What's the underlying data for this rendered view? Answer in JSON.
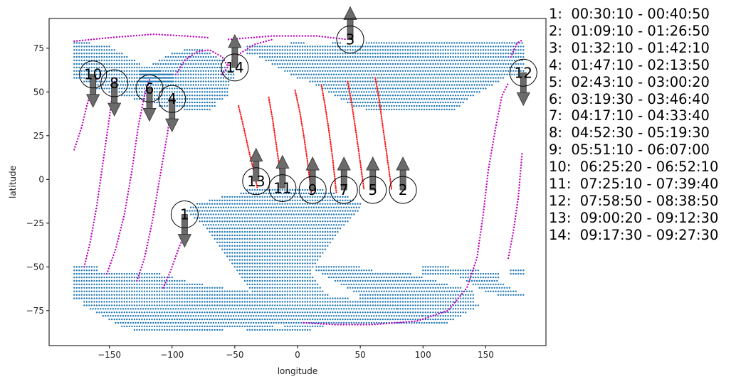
{
  "chart_data": {
    "type": "scatter",
    "title": "",
    "xlabel": "longitude",
    "ylabel": "latitude",
    "xlim": [
      -198,
      198
    ],
    "ylim": [
      -95,
      92
    ],
    "xticks": [
      -150,
      -100,
      -50,
      0,
      50,
      100,
      150
    ],
    "yticks": [
      -75,
      -50,
      -25,
      0,
      25,
      50,
      75
    ],
    "grid": false,
    "colors": {
      "land": "#1f77b4",
      "track": "#bf00bf",
      "segment": "#ff0000",
      "arrow": "#6b6b6b"
    },
    "land_rows": [
      [
        78,
        [
          [
            -178,
            -165
          ],
          [
            -5,
            5
          ],
          [
            28,
            35
          ],
          [
            55,
            180
          ]
        ]
      ],
      [
        76,
        [
          [
            -178,
            -150
          ],
          [
            -40,
            180
          ]
        ]
      ],
      [
        74,
        [
          [
            -178,
            -145
          ],
          [
            -90,
            -75
          ],
          [
            -40,
            180
          ]
        ]
      ],
      [
        72,
        [
          [
            -178,
            -140
          ],
          [
            -100,
            -70
          ],
          [
            -40,
            180
          ]
        ]
      ],
      [
        70,
        [
          [
            -178,
            -135
          ],
          [
            -105,
            -65
          ],
          [
            -30,
            180
          ]
        ]
      ],
      [
        68,
        [
          [
            -178,
            -130
          ],
          [
            -110,
            -60
          ],
          [
            -25,
            180
          ]
        ]
      ],
      [
        66,
        [
          [
            -178,
            -125
          ],
          [
            -115,
            -60
          ],
          [
            -20,
            180
          ]
        ]
      ],
      [
        64,
        [
          [
            -178,
            -120
          ],
          [
            -120,
            -55
          ],
          [
            -15,
            180
          ]
        ]
      ],
      [
        62,
        [
          [
            -178,
            -110
          ],
          [
            -125,
            -50
          ],
          [
            -10,
            180
          ]
        ]
      ],
      [
        60,
        [
          [
            -178,
            -100
          ],
          [
            -125,
            -50
          ],
          [
            -5,
            175
          ]
        ]
      ],
      [
        58,
        [
          [
            -178,
            -100
          ],
          [
            -125,
            -50
          ],
          [
            0,
            165
          ]
        ]
      ],
      [
        56,
        [
          [
            -170,
            -100
          ],
          [
            -125,
            -55
          ],
          [
            10,
            160
          ]
        ]
      ],
      [
        54,
        [
          [
            -165,
            -55
          ],
          [
            15,
            155
          ]
        ]
      ],
      [
        52,
        [
          [
            -160,
            -55
          ],
          [
            20,
            150
          ]
        ]
      ],
      [
        50,
        [
          [
            -150,
            -55
          ],
          [
            25,
            145
          ]
        ]
      ],
      [
        48,
        [
          [
            -140,
            -55
          ],
          [
            30,
            140
          ]
        ]
      ],
      [
        46,
        [
          [
            -130,
            -60
          ],
          [
            35,
            135
          ]
        ]
      ],
      [
        44,
        [
          [
            -120,
            -65
          ],
          [
            40,
            132
          ]
        ]
      ],
      [
        42,
        [
          [
            -110,
            -65
          ],
          [
            45,
            130
          ]
        ]
      ],
      [
        40,
        [
          [
            -90,
            -70
          ],
          [
            55,
            125
          ]
        ]
      ],
      [
        -6,
        [
          [
            -40,
            20
          ]
        ]
      ],
      [
        -8,
        [
          [
            -45,
            30
          ]
        ]
      ],
      [
        -10,
        [
          [
            -60,
            40
          ]
        ]
      ],
      [
        -12,
        [
          [
            -70,
            45
          ]
        ]
      ],
      [
        -14,
        [
          [
            -80,
            50
          ]
        ]
      ],
      [
        -16,
        [
          [
            -85,
            50
          ]
        ]
      ],
      [
        -18,
        [
          [
            -88,
            48
          ]
        ]
      ],
      [
        -20,
        [
          [
            -85,
            45
          ]
        ]
      ],
      [
        -22,
        [
          [
            -82,
            42
          ]
        ]
      ],
      [
        -24,
        [
          [
            -78,
            40
          ]
        ]
      ],
      [
        -26,
        [
          [
            -75,
            38
          ]
        ]
      ],
      [
        -28,
        [
          [
            -72,
            35
          ]
        ]
      ],
      [
        -30,
        [
          [
            -70,
            32
          ]
        ]
      ],
      [
        -32,
        [
          [
            -68,
            30
          ]
        ]
      ],
      [
        -34,
        [
          [
            -66,
            28
          ]
        ]
      ],
      [
        -36,
        [
          [
            -64,
            26
          ]
        ]
      ],
      [
        -38,
        [
          [
            -62,
            24
          ]
        ]
      ],
      [
        -40,
        [
          [
            -60,
            22
          ]
        ]
      ],
      [
        -42,
        [
          [
            -58,
            20
          ]
        ]
      ],
      [
        -44,
        [
          [
            -56,
            18
          ]
        ]
      ],
      [
        -46,
        [
          [
            -54,
            16
          ]
        ]
      ],
      [
        -48,
        [
          [
            -52,
            14
          ]
        ]
      ],
      [
        -50,
        [
          [
            -178,
            -160
          ],
          [
            -50,
            12
          ],
          [
            15,
            50
          ],
          [
            100,
            120
          ]
        ]
      ],
      [
        -52,
        [
          [
            -178,
            -160
          ],
          [
            -48,
            10
          ],
          [
            15,
            60
          ],
          [
            100,
            145
          ],
          [
            170,
            180
          ]
        ]
      ],
      [
        -54,
        [
          [
            -178,
            -110
          ],
          [
            -46,
            10
          ],
          [
            20,
            90
          ],
          [
            100,
            160
          ],
          [
            170,
            180
          ]
        ]
      ],
      [
        -56,
        [
          [
            -178,
            -100
          ],
          [
            -44,
            12
          ],
          [
            25,
            100
          ],
          [
            130,
            160
          ]
        ]
      ],
      [
        -58,
        [
          [
            -178,
            -90
          ],
          [
            -42,
            14
          ],
          [
            30,
            110
          ],
          [
            135,
            160
          ]
        ]
      ],
      [
        -60,
        [
          [
            -178,
            -75
          ],
          [
            -40,
            16
          ],
          [
            35,
            120
          ],
          [
            140,
            165
          ]
        ]
      ],
      [
        -62,
        [
          [
            -178,
            -60
          ],
          [
            -38,
            18
          ],
          [
            40,
            130
          ],
          [
            145,
            170
          ]
        ]
      ],
      [
        -64,
        [
          [
            -178,
            -40
          ],
          [
            -36,
            20
          ],
          [
            45,
            140
          ],
          [
            150,
            175
          ]
        ]
      ],
      [
        -66,
        [
          [
            -178,
            -10
          ],
          [
            -30,
            25
          ],
          [
            50,
            140
          ],
          [
            160,
            180
          ]
        ]
      ],
      [
        -68,
        [
          [
            -178,
            40
          ],
          [
            50,
            140
          ]
        ]
      ],
      [
        -70,
        [
          [
            -170,
            60
          ],
          [
            60,
            140
          ]
        ]
      ],
      [
        -72,
        [
          [
            -170,
            70
          ],
          [
            70,
            145
          ]
        ]
      ],
      [
        -74,
        [
          [
            -165,
            80
          ],
          [
            80,
            140
          ]
        ]
      ],
      [
        -76,
        [
          [
            -160,
            90
          ],
          [
            90,
            135
          ]
        ]
      ],
      [
        -78,
        [
          [
            -155,
            100
          ],
          [
            100,
            130
          ]
        ]
      ],
      [
        -80,
        [
          [
            -150,
            110
          ],
          [
            110,
            125
          ]
        ]
      ],
      [
        -82,
        [
          [
            -145,
            120
          ]
        ]
      ],
      [
        -84,
        [
          [
            -140,
            -20
          ],
          [
            -10,
            20
          ]
        ]
      ],
      [
        -86,
        [
          [
            -130,
            -60
          ],
          [
            -40,
            10
          ]
        ]
      ]
    ],
    "track_paths": [
      [
        [
          -178,
          17
        ],
        [
          -172,
          30
        ],
        [
          -168,
          42
        ],
        [
          -164,
          52
        ],
        [
          -160,
          58
        ]
      ],
      [
        [
          -170,
          -50
        ],
        [
          -165,
          -35
        ],
        [
          -160,
          -15
        ],
        [
          -155,
          10
        ],
        [
          -150,
          35
        ],
        [
          -147,
          52
        ],
        [
          -144,
          58
        ]
      ],
      [
        [
          -152,
          -54
        ],
        [
          -145,
          -40
        ],
        [
          -138,
          -20
        ],
        [
          -132,
          5
        ],
        [
          -127,
          30
        ],
        [
          -122,
          48
        ],
        [
          -118,
          57
        ]
      ],
      [
        [
          -128,
          -58
        ],
        [
          -122,
          -45
        ],
        [
          -116,
          -25
        ],
        [
          -110,
          0
        ],
        [
          -104,
          25
        ],
        [
          -100,
          43
        ]
      ],
      [
        [
          -107,
          -62
        ],
        [
          -101,
          -52
        ],
        [
          -94,
          -38
        ],
        [
          -89,
          -30
        ]
      ],
      [
        [
          -178,
          79
        ],
        [
          -150,
          81
        ],
        [
          -115,
          83
        ],
        [
          -90,
          82
        ],
        [
          -70,
          81
        ]
      ],
      [
        [
          -55,
          80
        ],
        [
          -20,
          82
        ],
        [
          15,
          82
        ],
        [
          40,
          80
        ]
      ],
      [
        [
          -97,
          60
        ],
        [
          -90,
          68
        ],
        [
          -80,
          73
        ],
        [
          -70,
          74
        ],
        [
          -60,
          70
        ],
        [
          -55,
          64
        ]
      ],
      [
        [
          -60,
          60
        ],
        [
          -50,
          70
        ],
        [
          -35,
          77
        ],
        [
          -20,
          80
        ]
      ],
      [
        [
          5,
          -82
        ],
        [
          30,
          -83
        ],
        [
          60,
          -83
        ],
        [
          95,
          -81
        ],
        [
          120,
          -75
        ],
        [
          135,
          -62
        ],
        [
          143,
          -45
        ],
        [
          148,
          -20
        ],
        [
          152,
          5
        ],
        [
          158,
          30
        ],
        [
          163,
          48
        ],
        [
          168,
          55
        ]
      ],
      [
        [
          168,
          -45
        ],
        [
          172,
          -30
        ],
        [
          176,
          -10
        ],
        [
          179,
          15
        ]
      ],
      [
        [
          170,
          70
        ],
        [
          175,
          78
        ],
        [
          180,
          80
        ]
      ]
    ],
    "red_segments": [
      [
        [
          -47,
          42
        ],
        [
          -43,
          30
        ],
        [
          -39,
          17
        ],
        [
          -35,
          5
        ],
        [
          -32,
          -5
        ]
      ],
      [
        [
          -23,
          47
        ],
        [
          -20,
          35
        ],
        [
          -17,
          20
        ],
        [
          -14,
          5
        ],
        [
          -11,
          -5
        ]
      ],
      [
        [
          -2,
          51
        ],
        [
          2,
          38
        ],
        [
          5,
          25
        ],
        [
          8,
          10
        ],
        [
          11,
          -8
        ]
      ],
      [
        [
          19,
          54
        ],
        [
          22,
          42
        ],
        [
          25,
          28
        ],
        [
          28,
          12
        ],
        [
          31,
          -8
        ]
      ],
      [
        [
          40,
          56
        ],
        [
          43,
          44
        ],
        [
          46,
          30
        ],
        [
          49,
          15
        ],
        [
          53,
          -6
        ]
      ],
      [
        [
          62,
          58
        ],
        [
          65,
          46
        ],
        [
          68,
          30
        ],
        [
          71,
          15
        ],
        [
          75,
          -6
        ]
      ]
    ],
    "markers": [
      {
        "label": "1",
        "x": -90,
        "y": -20,
        "arrow": "down"
      },
      {
        "label": "2",
        "x": 84,
        "y": -6,
        "arrow": "up"
      },
      {
        "label": "3",
        "x": 42,
        "y": 80,
        "arrow": "up"
      },
      {
        "label": "4",
        "x": -100,
        "y": 46,
        "arrow": "down"
      },
      {
        "label": "5",
        "x": 60,
        "y": -6,
        "arrow": "up"
      },
      {
        "label": "6",
        "x": -118,
        "y": 52,
        "arrow": "down"
      },
      {
        "label": "7",
        "x": 37,
        "y": -6,
        "arrow": "up"
      },
      {
        "label": "8",
        "x": -146,
        "y": 55,
        "arrow": "down"
      },
      {
        "label": "9",
        "x": 12,
        "y": -6,
        "arrow": "up"
      },
      {
        "label": "10",
        "x": -163,
        "y": 60,
        "arrow": "down"
      },
      {
        "label": "11",
        "x": -12,
        "y": -5,
        "arrow": "up"
      },
      {
        "label": "12",
        "x": 180,
        "y": 61,
        "arrow": "down"
      },
      {
        "label": "13",
        "x": -33,
        "y": -1,
        "arrow": "up"
      },
      {
        "label": "14",
        "x": -50,
        "y": 64,
        "arrow": "up"
      }
    ],
    "legend": [
      "1:  00:30:10 - 00:40:50",
      "2:  01:09:10 - 01:26:50",
      "3:  01:32:10 - 01:42:10",
      "4:  01:47:10 - 02:13:50",
      "5:  02:43:10 - 03:00:20",
      "6:  03:19:30 - 03:46:40",
      "7:  04:17:10 - 04:33:40",
      "8:  04:52:30 - 05:19:30",
      "9:  05:51:10 - 06:07:00",
      "10:  06:25:20 - 06:52:10",
      "11:  07:25:10 - 07:39:40",
      "12:  07:58:50 - 08:38:50",
      "13:  09:00:20 - 09:12:30",
      "14:  09:17:30 - 09:27:30"
    ]
  }
}
